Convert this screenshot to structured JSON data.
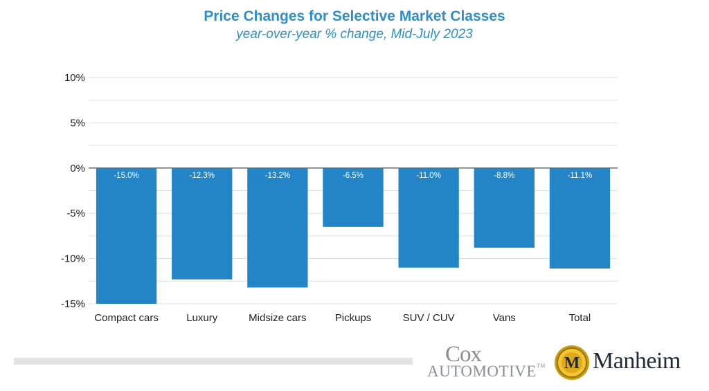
{
  "chart_data": {
    "type": "bar",
    "title": "Price Changes for Selective Market Classes",
    "subtitle": "year-over-year % change, Mid-July 2023",
    "categories": [
      "Compact cars",
      "Luxury",
      "Midsize cars",
      "Pickups",
      "SUV / CUV",
      "Vans",
      "Total"
    ],
    "values": [
      -15.0,
      -12.3,
      -13.2,
      -6.5,
      -11.0,
      -8.8,
      -11.1
    ],
    "value_labels": [
      "-15.0%",
      "-12.3%",
      "-13.2%",
      "-6.5%",
      "-11.0%",
      "-8.8%",
      "-11.1%"
    ],
    "ylim": [
      -15,
      10
    ],
    "yticks": [
      10,
      5,
      0,
      -5,
      -10,
      -15
    ],
    "ytick_labels": [
      "10%",
      "5%",
      "0%",
      "-5%",
      "-10%",
      "-15%"
    ],
    "grid": true,
    "legend": "none",
    "bar_color": "#2384c6"
  },
  "branding": {
    "cox_line1": "Cox",
    "cox_line2": "Automotive",
    "cox_tm": "TM",
    "manheim": "Manheim",
    "manheim_badge": "M"
  }
}
